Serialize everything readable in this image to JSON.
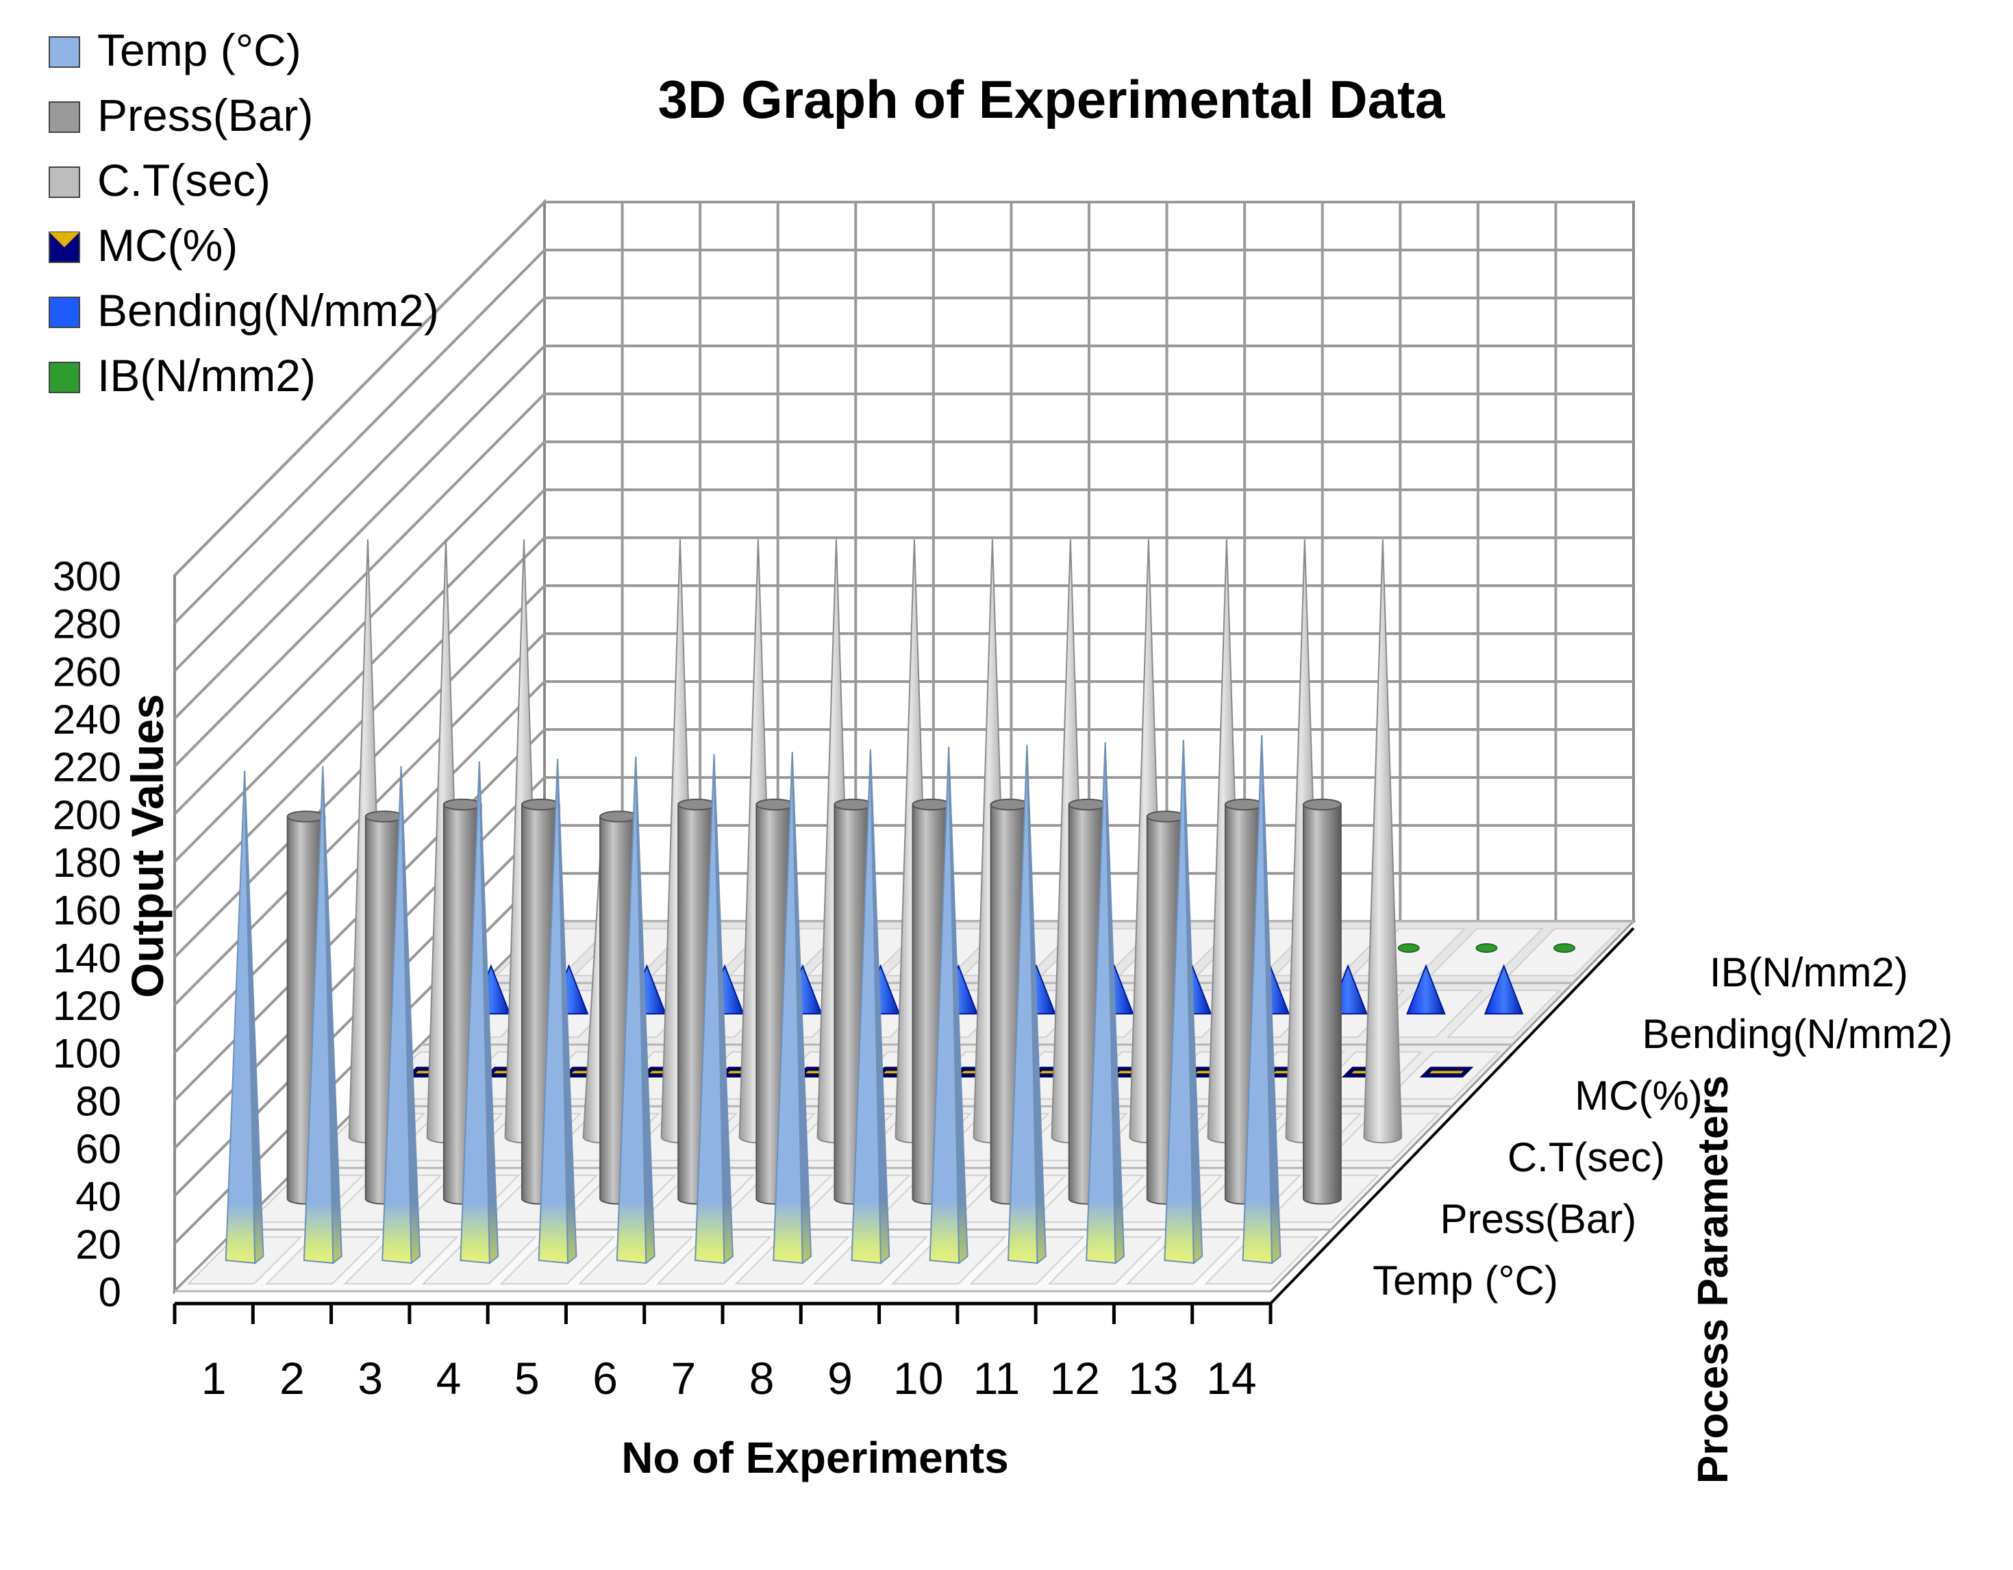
{
  "chart_data": {
    "type": "bar3d",
    "title": "3D Graph of Experimental Data",
    "xlabel": "No of Experiments",
    "ylabel": "Output Values",
    "zlabel": "Process Parameters",
    "ylim": [
      0,
      300
    ],
    "yticks": [
      0,
      20,
      40,
      60,
      80,
      100,
      120,
      140,
      160,
      180,
      200,
      220,
      240,
      260,
      280,
      300
    ],
    "grid": true,
    "legend_position": "top-left",
    "categories": [
      "1",
      "2",
      "3",
      "4",
      "5",
      "6",
      "7",
      "8",
      "9",
      "10",
      "11",
      "12",
      "13",
      "14"
    ],
    "series": [
      {
        "name": "Temp (°C)",
        "shape": "pyramid",
        "color": "#8FB4E3",
        "values": [
          205,
          207,
          207,
          209,
          210,
          211,
          212,
          213,
          214,
          215,
          216,
          217,
          218,
          220
        ]
      },
      {
        "name": "Press(Bar)",
        "shape": "cylinder",
        "color": "#9A9A9A",
        "values": [
          160,
          160,
          165,
          165,
          160,
          165,
          165,
          165,
          165,
          165,
          165,
          160,
          165,
          165
        ]
      },
      {
        "name": "C.T(sec)",
        "shape": "cone",
        "color": "#BDBDBD",
        "values": [
          250,
          250,
          250,
          130,
          250,
          250,
          250,
          250,
          250,
          250,
          250,
          250,
          250,
          250
        ]
      },
      {
        "name": "MC(%)",
        "shape": "pyramid",
        "color": "#E3B100",
        "values": [
          6,
          6,
          6,
          6,
          6,
          6,
          6,
          6,
          6,
          6,
          6,
          6,
          6,
          6
        ]
      },
      {
        "name": "Bending(N/mm2)",
        "shape": "pyramid",
        "color": "#1E5BFF",
        "values": [
          20,
          20,
          20,
          20,
          20,
          20,
          20,
          20,
          20,
          20,
          20,
          20,
          20,
          20
        ]
      },
      {
        "name": "IB(N/mm2)",
        "shape": "pyramid",
        "color": "#2E9B2E",
        "values": [
          1,
          1,
          1,
          1,
          1,
          1,
          1,
          1,
          1,
          1,
          1,
          1,
          1,
          1
        ]
      }
    ]
  }
}
